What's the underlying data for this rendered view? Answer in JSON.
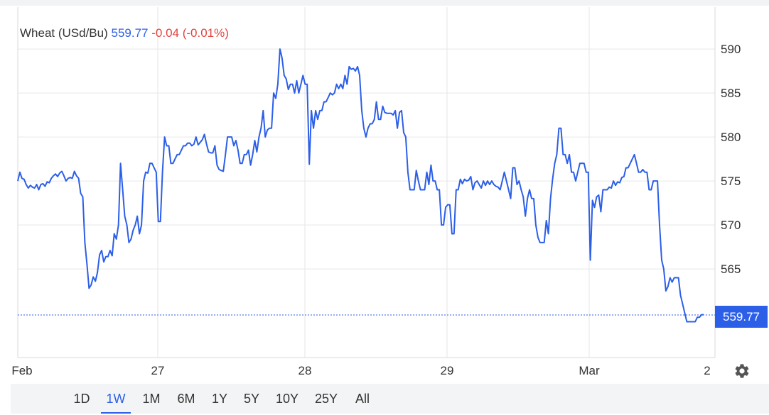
{
  "legend": {
    "instrument": "Wheat (USd/Bu)",
    "price": "559.77",
    "change": "-0.04 (-0.01%)"
  },
  "price_tag": "559.77",
  "range_buttons": [
    {
      "label": "1D",
      "active": false
    },
    {
      "label": "1W",
      "active": true
    },
    {
      "label": "1M",
      "active": false
    },
    {
      "label": "6M",
      "active": false
    },
    {
      "label": "1Y",
      "active": false
    },
    {
      "label": "5Y",
      "active": false
    },
    {
      "label": "10Y",
      "active": false
    },
    {
      "label": "25Y",
      "active": false
    },
    {
      "label": "All",
      "active": false
    }
  ],
  "settings_icon": "gear-icon",
  "colors": {
    "line": "#2c5fe8",
    "price": "#2c5fe8",
    "change": "#e4433f",
    "grid": "#e6e6e6",
    "range_bar_bg": "#f3f4f6"
  },
  "chart_data": {
    "type": "line",
    "title": "",
    "xlabel": "",
    "ylabel": "",
    "x_ticks": [
      "Feb",
      "27",
      "28",
      "29",
      "Mar",
      "2"
    ],
    "y_ticks": [
      565,
      570,
      575,
      580,
      585,
      590
    ],
    "ylim": [
      555,
      593
    ],
    "last_value": 559.77,
    "grid": true,
    "series": [
      {
        "values": [
          575.0,
          576.0,
          575.3,
          575.2,
          574.6,
          574.2,
          574.5,
          574.3,
          574.2,
          574.6,
          574.0,
          574.6,
          574.7,
          574.4,
          574.9,
          574.8,
          575.3,
          575.6,
          575.8,
          575.5,
          575.9,
          576.1,
          575.6,
          575.0,
          575.3,
          575.4,
          575.3,
          576.1,
          575.6,
          575.3,
          573.6,
          573.2,
          568.0,
          565.5,
          562.8,
          563.2,
          564.1,
          563.6,
          564.6,
          566.6,
          567.1,
          565.8,
          566.4,
          566.4,
          567.1,
          566.5,
          569.0,
          568.4,
          570.0,
          577.0,
          574.0,
          571.0,
          570.0,
          568.0,
          568.4,
          569.4,
          570.0,
          571.0,
          569.0,
          570.0,
          575.0,
          576.0,
          575.9,
          577.0,
          577.0,
          576.5,
          576.0,
          570.4,
          570.4,
          576.0,
          580.0,
          579.0,
          579.0,
          577.0,
          577.0,
          577.5,
          578.0,
          578.0,
          578.5,
          579.0,
          579.0,
          579.3,
          579.3,
          579.0,
          579.2,
          580.0,
          579.1,
          579.4,
          579.7,
          580.3,
          579.2,
          578.3,
          578.2,
          578.2,
          579.0,
          576.8,
          576.3,
          576.2,
          576.1,
          578.0,
          580.0,
          580.0,
          580.0,
          579.0,
          579.6,
          578.5,
          577.0,
          577.0,
          578.0,
          578.0,
          578.5,
          576.8,
          578.0,
          579.6,
          578.3,
          580.0,
          581.0,
          583.0,
          580.0,
          580.8,
          581.0,
          581.0,
          585.0,
          584.4,
          586.0,
          590.0,
          589.0,
          587.0,
          586.6,
          585.4,
          586.0,
          586.0,
          585.0,
          586.4,
          585.0,
          586.0,
          587.0,
          586.0,
          586.0,
          576.9,
          583.0,
          581.0,
          583.0,
          582.0,
          583.0,
          583.0,
          584.0,
          584.0,
          584.5,
          585.0,
          584.8,
          585.0,
          586.0,
          585.5,
          586.0,
          585.5,
          587.0,
          586.0,
          588.0,
          587.7,
          587.8,
          587.5,
          588.0,
          587.0,
          583.0,
          581.0,
          580.0,
          581.0,
          581.5,
          581.5,
          582.0,
          584.0,
          582.0,
          582.0,
          583.5,
          582.8,
          582.7,
          582.7,
          582.7,
          582.5,
          583.0,
          581.0,
          582.8,
          583.0,
          580.5,
          580.0,
          576.0,
          574.0,
          574.0,
          574.0,
          576.2,
          575.0,
          574.0,
          574.0,
          574.0,
          576.0,
          574.6,
          576.8,
          575.0,
          575.0,
          574.0,
          574.0,
          570.0,
          570.0,
          572.0,
          572.3,
          572.3,
          569.0,
          569.0,
          574.0,
          574.0,
          575.2,
          574.7,
          575.2,
          575.0,
          575.1,
          575.5,
          574.0,
          574.8,
          575.0,
          574.6,
          574.2,
          575.0,
          574.5,
          575.0,
          574.6,
          575.0,
          574.6,
          574.4,
          574.3,
          574.0,
          575.0,
          576.0,
          575.0,
          574.0,
          573.0,
          576.5,
          576.5,
          574.6,
          575.0,
          574.0,
          573.2,
          571.0,
          573.0,
          574.0,
          573.0,
          573.0,
          570.0,
          568.6,
          568.0,
          568.0,
          568.0,
          570.5,
          569.0,
          573.0,
          575.2,
          577.0,
          578.0,
          581.0,
          581.0,
          578.0,
          578.0,
          577.0,
          578.0,
          576.0,
          576.0,
          575.0,
          576.0,
          577.0,
          577.0,
          577.0,
          576.0,
          576.0,
          566.0,
          572.8,
          572.0,
          573.2,
          573.4,
          571.5,
          574.0,
          574.0,
          574.0,
          574.3,
          574.2,
          575.0,
          574.5,
          574.9,
          574.8,
          575.4,
          575.5,
          576.5,
          576.5,
          577.0,
          577.5,
          578.0,
          577.0,
          576.0,
          576.0,
          576.3,
          576.0,
          576.0,
          574.0,
          574.0,
          575.0,
          575.0,
          575.0,
          570.0,
          566.0,
          565.0,
          562.5,
          563.0,
          564.0,
          563.5,
          564.0,
          564.0,
          564.0,
          562.0,
          561.0,
          560.0,
          559.0,
          559.0,
          559.0,
          559.0,
          559.0,
          559.5,
          559.5,
          559.8,
          559.8
        ]
      }
    ]
  }
}
